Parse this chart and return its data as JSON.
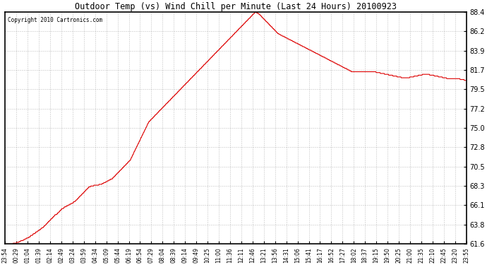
{
  "title": "Outdoor Temp (vs) Wind Chill per Minute (Last 24 Hours) 20100923",
  "copyright": "Copyright 2010 Cartronics.com",
  "line_color": "#dd0000",
  "bg_color": "#ffffff",
  "plot_bg_color": "#ffffff",
  "grid_color": "#999999",
  "ylim": [
    61.6,
    88.4
  ],
  "yticks": [
    61.6,
    63.8,
    66.1,
    68.3,
    70.5,
    72.8,
    75.0,
    77.2,
    79.5,
    81.7,
    83.9,
    86.2,
    88.4
  ],
  "xtick_labels": [
    "23:54",
    "00:29",
    "01:04",
    "01:39",
    "02:14",
    "02:49",
    "03:24",
    "03:59",
    "04:34",
    "05:09",
    "05:44",
    "06:19",
    "06:54",
    "07:29",
    "08:04",
    "08:39",
    "09:14",
    "09:49",
    "10:25",
    "11:00",
    "11:36",
    "12:11",
    "12:46",
    "13:21",
    "13:56",
    "14:31",
    "15:06",
    "15:41",
    "16:17",
    "16:52",
    "17:27",
    "18:02",
    "18:37",
    "19:15",
    "19:50",
    "20:25",
    "21:00",
    "21:35",
    "22:10",
    "22:45",
    "23:20",
    "23:55"
  ],
  "n_points": 1440,
  "data_y": [
    61.6,
    61.6,
    61.6,
    61.6,
    61.6,
    61.6,
    61.6,
    61.6,
    61.6,
    61.6,
    61.7,
    61.7,
    61.7,
    61.7,
    61.8,
    61.8,
    61.8,
    61.9,
    61.9,
    62.0,
    62.0,
    62.0,
    62.1,
    62.1,
    62.2,
    62.2,
    62.3,
    62.3,
    62.4,
    62.4,
    62.5,
    62.6,
    62.6,
    62.7,
    62.8,
    62.8,
    62.9,
    63.0,
    63.0,
    63.1,
    63.2,
    63.2,
    63.3,
    63.4,
    63.5,
    63.5,
    63.6,
    63.7,
    63.8,
    63.9,
    64.0,
    64.1,
    64.2,
    64.3,
    64.4,
    64.5,
    64.6,
    64.7,
    64.8,
    64.9,
    65.0,
    65.0,
    65.1,
    65.2,
    65.3,
    65.4,
    65.5,
    65.6,
    65.7,
    65.7,
    65.8,
    65.9,
    65.9,
    66.0,
    66.0,
    66.1,
    66.1,
    66.2,
    66.2,
    66.3,
    66.3,
    66.4,
    66.5,
    66.5,
    66.6,
    66.7,
    66.8,
    66.9,
    67.0,
    67.1,
    67.2,
    67.3,
    67.4,
    67.5,
    67.6,
    67.7,
    67.8,
    67.9,
    68.0,
    68.1,
    68.2,
    68.2,
    68.3,
    68.3,
    68.3,
    68.3,
    68.4,
    68.4,
    68.4,
    68.4,
    68.4,
    68.4,
    68.5,
    68.5,
    68.5,
    68.5,
    68.6,
    68.6,
    68.7,
    68.7,
    68.8,
    68.8,
    68.9,
    68.9,
    69.0,
    69.0,
    69.1,
    69.1,
    69.2,
    69.3,
    69.4,
    69.5,
    69.6,
    69.7,
    69.8,
    69.9,
    70.0,
    70.1,
    70.2,
    70.3,
    70.4,
    70.5,
    70.6,
    70.7,
    70.8,
    70.9,
    71.0,
    71.1,
    71.2,
    71.3,
    71.5,
    71.7,
    71.9,
    72.1,
    72.3,
    72.5,
    72.7,
    72.9,
    73.1,
    73.3,
    73.5,
    73.7,
    73.9,
    74.1,
    74.3,
    74.5,
    74.7,
    74.9,
    75.1,
    75.3,
    75.5,
    75.7,
    75.8,
    75.9,
    76.0,
    76.1,
    76.2,
    76.3,
    76.4,
    76.5,
    76.6,
    76.7,
    76.8,
    76.9,
    77.0,
    77.1,
    77.2,
    77.3,
    77.4,
    77.5,
    77.6,
    77.7,
    77.8,
    77.9,
    78.0,
    78.1,
    78.2,
    78.3,
    78.4,
    78.5,
    78.6,
    78.7,
    78.8,
    78.9,
    79.0,
    79.1,
    79.2,
    79.3,
    79.4,
    79.5,
    79.6,
    79.7,
    79.8,
    79.9,
    80.0,
    80.1,
    80.2,
    80.3,
    80.4,
    80.5,
    80.6,
    80.7,
    80.8,
    80.9,
    81.0,
    81.1,
    81.2,
    81.3,
    81.4,
    81.5,
    81.6,
    81.7,
    81.8,
    81.9,
    82.0,
    82.1,
    82.2,
    82.3,
    82.4,
    82.5,
    82.6,
    82.7,
    82.8,
    82.9,
    83.0,
    83.1,
    83.2,
    83.3,
    83.4,
    83.5,
    83.6,
    83.7,
    83.8,
    83.9,
    84.0,
    84.1,
    84.2,
    84.3,
    84.4,
    84.5,
    84.6,
    84.7,
    84.8,
    84.9,
    85.0,
    85.1,
    85.2,
    85.3,
    85.4,
    85.5,
    85.6,
    85.7,
    85.8,
    85.9,
    86.0,
    86.1,
    86.2,
    86.3,
    86.4,
    86.5,
    86.6,
    86.7,
    86.8,
    86.9,
    87.0,
    87.1,
    87.2,
    87.3,
    87.4,
    87.5,
    87.6,
    87.7,
    87.8,
    87.9,
    88.0,
    88.1,
    88.2,
    88.3,
    88.4,
    88.35,
    88.3,
    88.25,
    88.2,
    88.1,
    88.0,
    87.9,
    87.8,
    87.7,
    87.6,
    87.5,
    87.4,
    87.3,
    87.2,
    87.1,
    87.0,
    86.9,
    86.8,
    86.7,
    86.6,
    86.5,
    86.4,
    86.3,
    86.2,
    86.1,
    86.0,
    85.9,
    85.85,
    85.8,
    85.75,
    85.7,
    85.65,
    85.6,
    85.55,
    85.5,
    85.45,
    85.4,
    85.35,
    85.3,
    85.25,
    85.2,
    85.15,
    85.1,
    85.05,
    85.0,
    84.95,
    84.9,
    84.85,
    84.8,
    84.75,
    84.7,
    84.65,
    84.6,
    84.55,
    84.5,
    84.45,
    84.4,
    84.35,
    84.3,
    84.25,
    84.2,
    84.15,
    84.1,
    84.05,
    84.0,
    83.95,
    83.9,
    83.85,
    83.8,
    83.75,
    83.7,
    83.65,
    83.6,
    83.55,
    83.5,
    83.45,
    83.4,
    83.35,
    83.3,
    83.25,
    83.2,
    83.15,
    83.1,
    83.05,
    83.0,
    82.95,
    82.9,
    82.85,
    82.8,
    82.75,
    82.7,
    82.65,
    82.6,
    82.55,
    82.5,
    82.45,
    82.4,
    82.35,
    82.3,
    82.25,
    82.2,
    82.15,
    82.1,
    82.05,
    82.0,
    81.95,
    81.9,
    81.85,
    81.8,
    81.75,
    81.7,
    81.65,
    81.6,
    81.55,
    81.5,
    81.5,
    81.5,
    81.5,
    81.5,
    81.5,
    81.5,
    81.5,
    81.5,
    81.5,
    81.5,
    81.5,
    81.5,
    81.5,
    81.5,
    81.5,
    81.5,
    81.5,
    81.5,
    81.5,
    81.5,
    81.5,
    81.5,
    81.5,
    81.5,
    81.5,
    81.5,
    81.48,
    81.46,
    81.44,
    81.42,
    81.4,
    81.38,
    81.36,
    81.34,
    81.32,
    81.3,
    81.28,
    81.26,
    81.24,
    81.22,
    81.2,
    81.18,
    81.16,
    81.14,
    81.12,
    81.1,
    81.08,
    81.06,
    81.04,
    81.02,
    81.0,
    80.98,
    80.96,
    80.94,
    80.92,
    80.9,
    80.88,
    80.86,
    80.84,
    80.82,
    80.8,
    80.8,
    80.8,
    80.8,
    80.8,
    80.8,
    80.82,
    80.84,
    80.86,
    80.88,
    80.9,
    80.92,
    80.94,
    80.96,
    80.98,
    81.0,
    81.02,
    81.04,
    81.06,
    81.08,
    81.1,
    81.12,
    81.14,
    81.16,
    81.18,
    81.2,
    81.22,
    81.24,
    81.22,
    81.2,
    81.18,
    81.16,
    81.14,
    81.12,
    81.1,
    81.08,
    81.06,
    81.04,
    81.02,
    81.0,
    80.98,
    80.96,
    80.94,
    80.92,
    80.9,
    80.88,
    80.86,
    80.84,
    80.82,
    80.8,
    80.78,
    80.76,
    80.74,
    80.72,
    80.7,
    80.7,
    80.7,
    80.7,
    80.7,
    80.7,
    80.7,
    80.7,
    80.7,
    80.7,
    80.7,
    80.7,
    80.68,
    80.66,
    80.64,
    80.62,
    80.6,
    80.58,
    80.56,
    80.54,
    80.52,
    80.5
  ]
}
